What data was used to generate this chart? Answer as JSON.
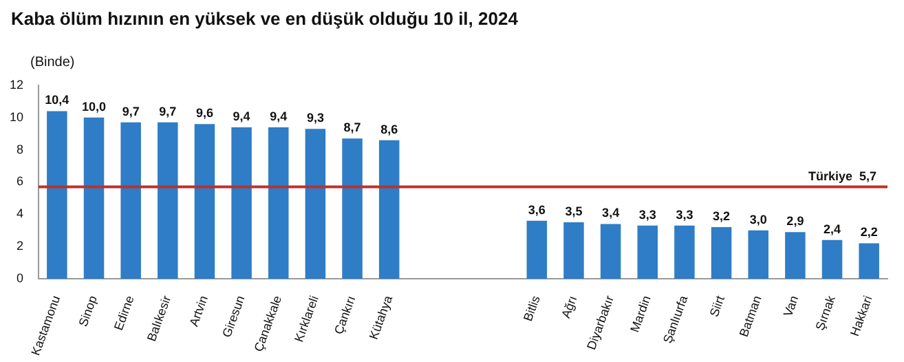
{
  "chart_data": {
    "type": "bar",
    "title": "Kaba ölüm hızının en yüksek ve en düşük olduğu 10 il, 2024",
    "ylabel": "(Binde)",
    "categories": [
      "Kastamonu",
      "Sinop",
      "Edirne",
      "Balıkesir",
      "Artvin",
      "Giresun",
      "Çanakkale",
      "Kırklareli",
      "Çankırı",
      "Kütahya",
      null,
      null,
      null,
      "Bitlis",
      "Ağrı",
      "Diyarbakır",
      "Mardin",
      "Şanlıurfa",
      "Siirt",
      "Batman",
      "Van",
      "Şırnak",
      "Hakkari"
    ],
    "values": [
      10.4,
      10.0,
      9.7,
      9.7,
      9.6,
      9.4,
      9.4,
      9.3,
      8.7,
      8.6,
      null,
      null,
      null,
      3.6,
      3.5,
      3.4,
      3.3,
      3.3,
      3.2,
      3.0,
      2.9,
      2.4,
      2.2
    ],
    "value_labels": [
      "10,4",
      "10,0",
      "9,7",
      "9,7",
      "9,6",
      "9,4",
      "9,4",
      "9,3",
      "8,7",
      "8,6",
      null,
      null,
      null,
      "3,6",
      "3,5",
      "3,4",
      "3,3",
      "3,3",
      "3,2",
      "3,0",
      "2,9",
      "2,4",
      "2,2"
    ],
    "color": "#2f7dc6",
    "ylim": [
      0,
      12
    ],
    "yticks": [
      0,
      2,
      4,
      6,
      8,
      10,
      12
    ],
    "grid": false,
    "ref_lines": [
      {
        "axis": "y",
        "value": 5.7,
        "label": "Türkiye  5,7",
        "color": "#c0302b"
      }
    ]
  }
}
